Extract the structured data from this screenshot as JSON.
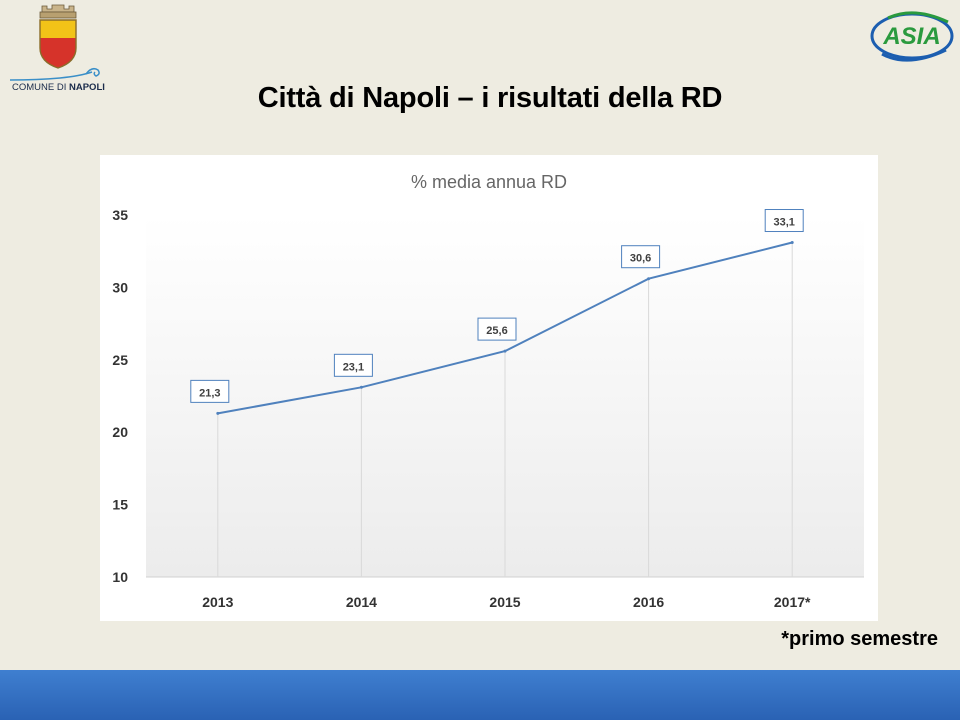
{
  "page": {
    "title": "Città di Napoli – i risultati della RD",
    "footnote": "*primo semestre"
  },
  "logos": {
    "comune_text_regular": "COMUNE DI ",
    "comune_text_bold": "NAPOLI",
    "asia_text": "ASIA",
    "comune_crest_icon": "napoli-crest-icon",
    "asia_icon": "asia-logo-icon"
  },
  "colors": {
    "background": "#eeece1",
    "line": "#4f81bd",
    "bottom_bar": "#3a76c8",
    "crest_yellow": "#f2c318",
    "crest_red": "#d6332a",
    "asia_green": "#2a9a3e",
    "asia_blue": "#1c5eb0"
  },
  "chart_data": {
    "type": "line",
    "title": "% media annua RD",
    "categories": [
      "2013",
      "2014",
      "2015",
      "2016",
      "2017*"
    ],
    "values": [
      21.3,
      23.1,
      25.6,
      30.6,
      33.1
    ],
    "value_labels": [
      "21,3",
      "23,1",
      "25,6",
      "30,6",
      "33,1"
    ],
    "ylim": [
      10,
      35
    ],
    "yticks": [
      10,
      15,
      20,
      25,
      30,
      35
    ],
    "xlabel": "",
    "ylabel": "",
    "grid": false,
    "drop_lines": true,
    "legend": "none"
  }
}
